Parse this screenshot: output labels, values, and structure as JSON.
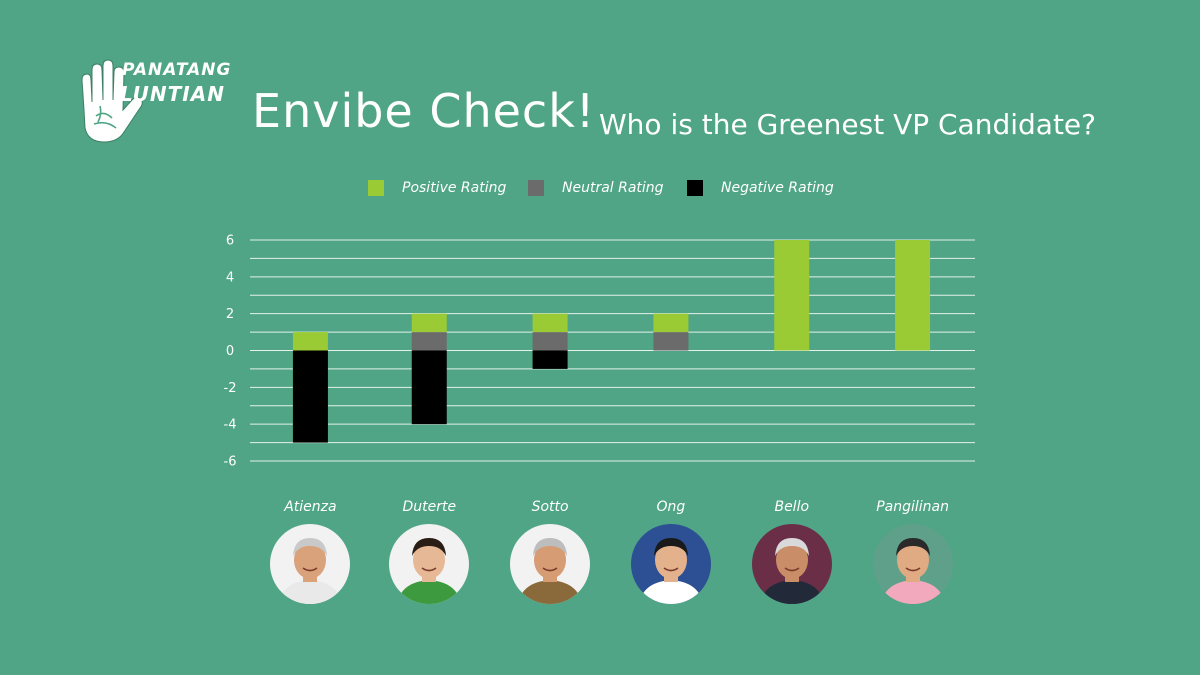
{
  "brand": {
    "line1": "PANATANG",
    "line2": "LUNTIAN"
  },
  "header": {
    "title": "Envibe Check!",
    "subtitle": "Who is the Greenest VP Candidate?"
  },
  "colors": {
    "background": "#4fa585",
    "positive": "#9acb34",
    "neutral": "#6b6b6b",
    "negative": "#000000",
    "grid": "#ffffff"
  },
  "chart_data": {
    "type": "bar",
    "stacked": true,
    "categories": [
      "Atienza",
      "Duterte",
      "Sotto",
      "Ong",
      "Bello",
      "Pangilinan"
    ],
    "series": [
      {
        "name": "Positive Rating",
        "color": "#9acb34",
        "values": [
          1,
          1,
          1,
          1,
          6,
          6
        ]
      },
      {
        "name": "Neutral Rating",
        "color": "#6b6b6b",
        "values": [
          0,
          1,
          1,
          1,
          0,
          0
        ]
      },
      {
        "name": "Negative Rating",
        "color": "#000000",
        "values": [
          -5,
          -4,
          -1,
          0,
          0,
          0
        ]
      }
    ],
    "y_ticks": [
      "6",
      "4",
      "2",
      "0",
      "-2",
      "-4",
      "-6"
    ],
    "ylim": [
      -6,
      6
    ],
    "grid": true,
    "legend_position": "top-center",
    "title": "",
    "xlabel": "",
    "ylabel": ""
  },
  "avatars": [
    {
      "icon": "atienza-portrait-icon",
      "bg": "#f2f2f2",
      "skin": "#d9a27a",
      "shirt": "#e9e9e9",
      "hair": "#c9c9c9"
    },
    {
      "icon": "duterte-portrait-icon",
      "bg": "#f2f2f2",
      "skin": "#e7b896",
      "shirt": "#3e9a3e",
      "hair": "#2a1d15"
    },
    {
      "icon": "sotto-portrait-icon",
      "bg": "#f2f2f2",
      "skin": "#d69c74",
      "shirt": "#8a6a3a",
      "hair": "#bdbdbd"
    },
    {
      "icon": "ong-portrait-icon",
      "bg": "#2d4f93",
      "skin": "#e3b28c",
      "shirt": "#ffffff",
      "hair": "#1a1a1a"
    },
    {
      "icon": "bello-portrait-icon",
      "bg": "#6a2e47",
      "skin": "#c98d68",
      "shirt": "#222a3a",
      "hair": "#d9d9d9"
    },
    {
      "icon": "pangilinan-portrait-icon",
      "bg": "#5fa08a",
      "skin": "#e0aa82",
      "shirt": "#f3a9bd",
      "hair": "#2a2a2a"
    }
  ]
}
